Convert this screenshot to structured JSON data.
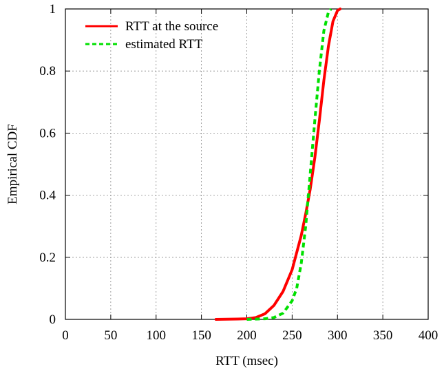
{
  "chart_data": {
    "type": "line",
    "title": "",
    "xlabel": "RTT (msec)",
    "ylabel": "Empirical CDF",
    "xlim": [
      0,
      400
    ],
    "ylim": [
      0,
      1
    ],
    "x_ticks": [
      "0",
      "50",
      "100",
      "150",
      "200",
      "250",
      "300",
      "350",
      "400"
    ],
    "y_ticks": [
      "0",
      "0.2",
      "0.4",
      "0.6",
      "0.8",
      "1"
    ],
    "grid": true,
    "legend_position": "top-left",
    "series": [
      {
        "name": "RTT at the source",
        "color": "#ff0000",
        "style": "solid",
        "points": [
          [
            166,
            0
          ],
          [
            190,
            0.001
          ],
          [
            200,
            0.002
          ],
          [
            210,
            0.006
          ],
          [
            220,
            0.018
          ],
          [
            230,
            0.045
          ],
          [
            240,
            0.09
          ],
          [
            250,
            0.16
          ],
          [
            260,
            0.27
          ],
          [
            265,
            0.34
          ],
          [
            270,
            0.42
          ],
          [
            275,
            0.52
          ],
          [
            280,
            0.64
          ],
          [
            285,
            0.77
          ],
          [
            290,
            0.88
          ],
          [
            295,
            0.96
          ],
          [
            300,
            0.995
          ],
          [
            303,
            1.0
          ]
        ]
      },
      {
        "name": "estimated RTT",
        "color": "#00e000",
        "style": "dashed",
        "points": [
          [
            200,
            0
          ],
          [
            220,
            0.002
          ],
          [
            230,
            0.006
          ],
          [
            240,
            0.02
          ],
          [
            250,
            0.06
          ],
          [
            255,
            0.1
          ],
          [
            260,
            0.18
          ],
          [
            265,
            0.3
          ],
          [
            270,
            0.47
          ],
          [
            275,
            0.64
          ],
          [
            280,
            0.8
          ],
          [
            285,
            0.93
          ],
          [
            290,
            0.99
          ],
          [
            293,
            1.0
          ]
        ]
      }
    ]
  }
}
